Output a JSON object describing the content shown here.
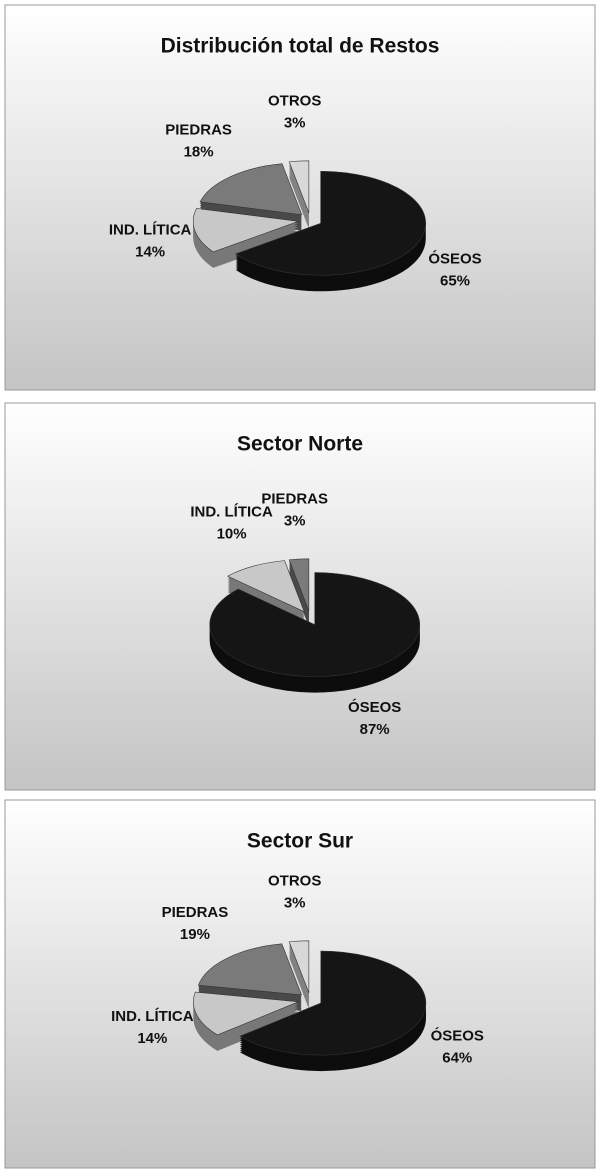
{
  "chart_data": [
    {
      "type": "pie",
      "title": "Distribución total  de Restos",
      "categories": [
        "ÓSEOS",
        "IND. LÍTICA",
        "PIEDRAS",
        "OTROS"
      ],
      "values": [
        65,
        14,
        18,
        3
      ],
      "value_labels": [
        "65%",
        "14%",
        "18%",
        "3%"
      ],
      "colors": [
        "#151515",
        "#c8c8c8",
        "#7a7a7a",
        "#d8d8d8"
      ]
    },
    {
      "type": "pie",
      "title": "Sector Norte",
      "categories": [
        "ÓSEOS",
        "IND. LÍTICA",
        "PIEDRAS"
      ],
      "values": [
        87,
        10,
        3
      ],
      "value_labels": [
        "87%",
        "10%",
        "3%"
      ],
      "colors": [
        "#151515",
        "#c8c8c8",
        "#7a7a7a"
      ]
    },
    {
      "type": "pie",
      "title": "Sector Sur",
      "categories": [
        "ÓSEOS",
        "IND. LÍTICA",
        "PIEDRAS",
        "OTROS"
      ],
      "values": [
        64,
        14,
        19,
        3
      ],
      "value_labels": [
        "64%",
        "14%",
        "19%",
        "3%"
      ],
      "colors": [
        "#151515",
        "#c8c8c8",
        "#7a7a7a",
        "#d8d8d8"
      ]
    }
  ]
}
